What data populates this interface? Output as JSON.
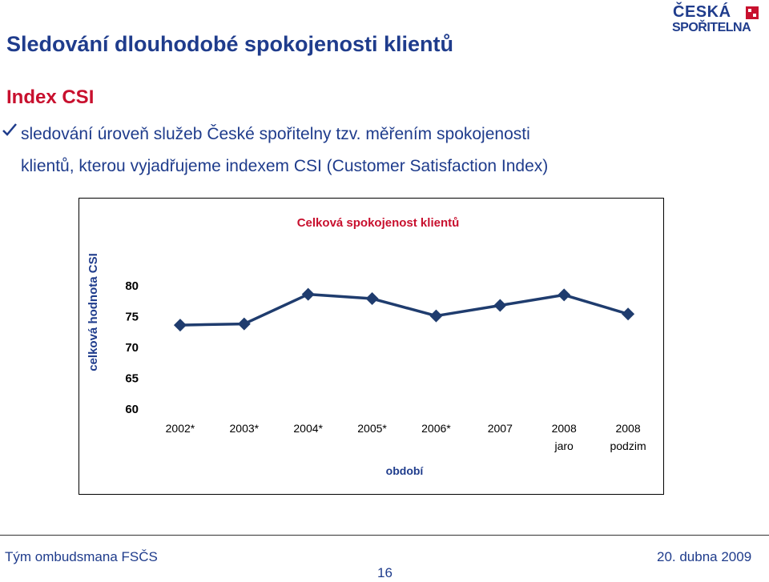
{
  "header": {
    "title": "Sledování dlouhodobé spokojenosti klientů",
    "logo": {
      "line1": "ČESKÁ",
      "line2": "SPOŘITELNA",
      "brand_color": "#1f3c8c",
      "accent_color": "#c8102e"
    }
  },
  "section": {
    "heading": "Index CSI",
    "bullet_icon": "check-icon",
    "bullet_text_line1": "sledování úroveň služeb České spořitelny tzv. měřením spokojenosti",
    "bullet_text_line2": "klientů, kterou vyjadřujeme indexem CSI (Customer Satisfaction Index)"
  },
  "chart_data": {
    "type": "line",
    "title": "Celková spokojenost klientů",
    "xlabel": "období",
    "ylabel": "celková hodnota CSI",
    "categories": [
      [
        "2002*"
      ],
      [
        "2003*"
      ],
      [
        "2004*"
      ],
      [
        "2005*"
      ],
      [
        "2006*"
      ],
      [
        "2007"
      ],
      [
        "2008",
        "jaro"
      ],
      [
        "2008",
        "podzim"
      ]
    ],
    "series": [
      {
        "values": [
          73.5,
          73.7,
          78.5,
          77.8,
          75.0,
          76.7,
          78.4,
          75.3
        ],
        "color": "#1f3c6e",
        "marker": "diamond"
      }
    ],
    "yticks": [
      60,
      65,
      70,
      75,
      80
    ],
    "ylim": [
      60,
      83
    ],
    "grid": false,
    "legend": "none"
  },
  "footer": {
    "left": "Tým ombudsmana FSČS",
    "page": "16",
    "date": "20. dubna 2009"
  }
}
